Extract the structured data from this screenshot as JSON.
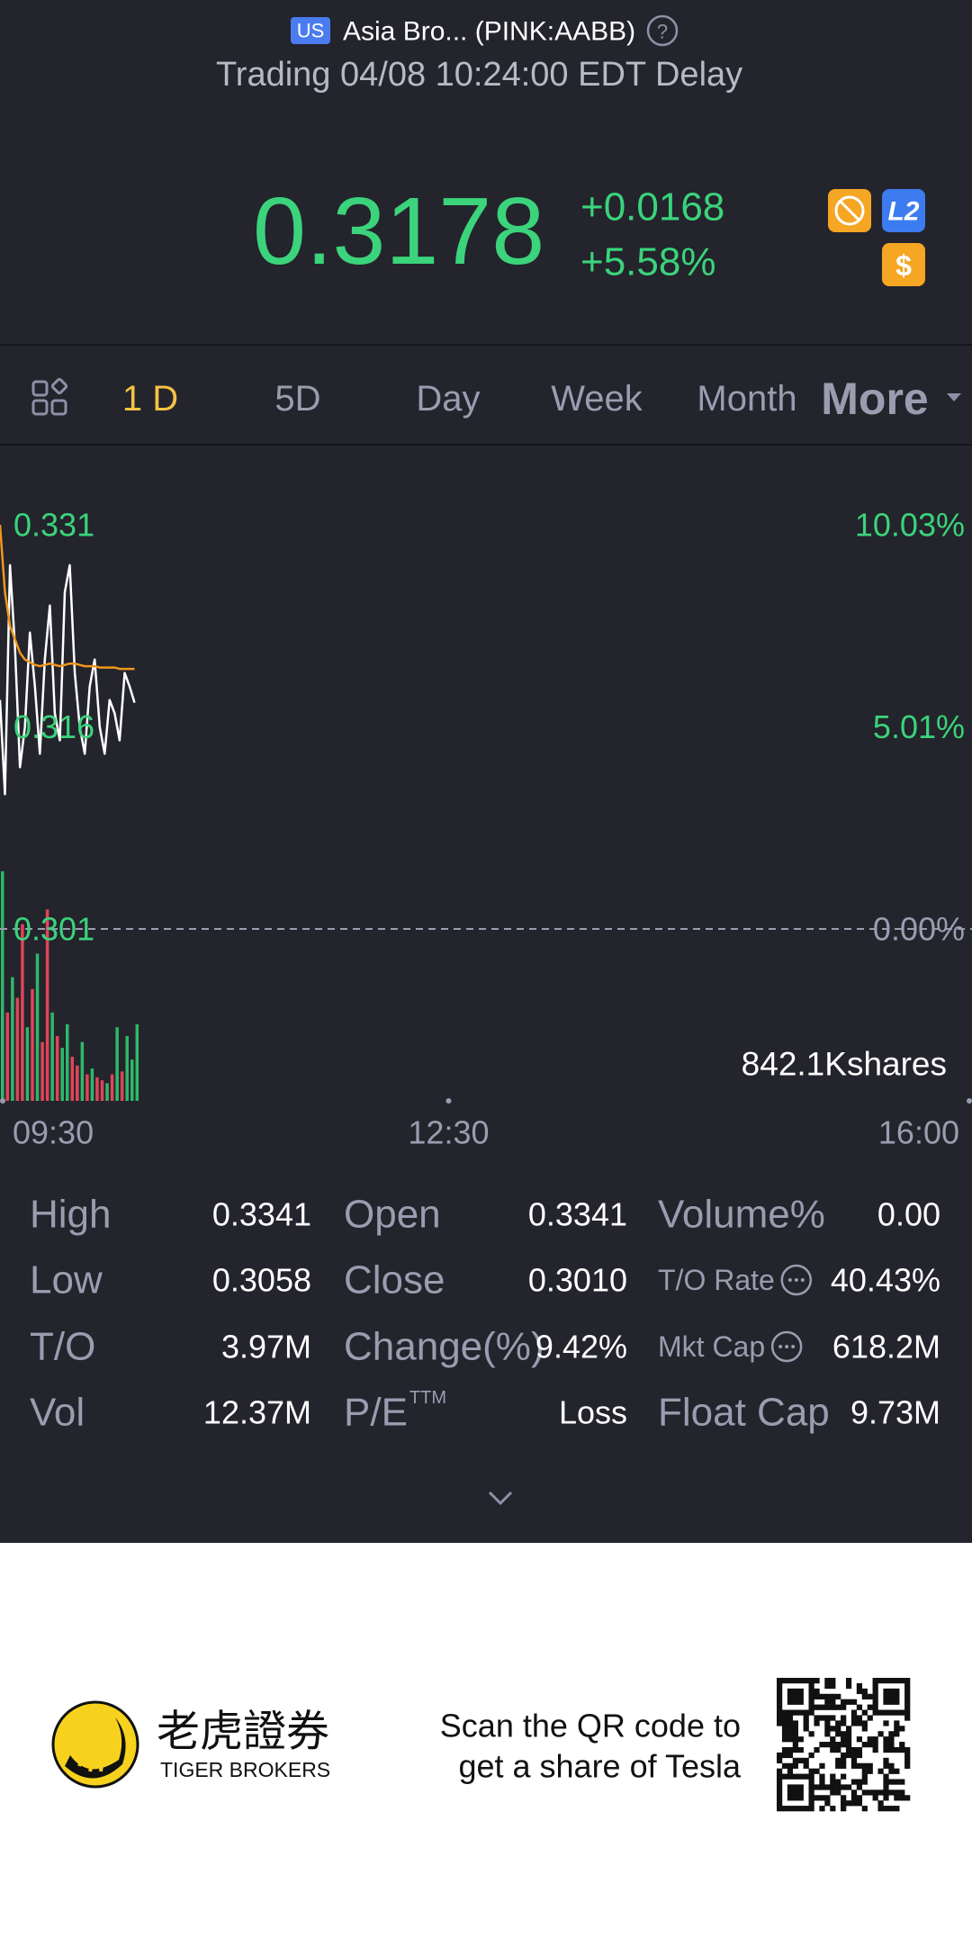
{
  "header": {
    "market_badge": "US",
    "name": "Asia Bro... (PINK:AABB)",
    "help": "?",
    "status": "Trading 04/08 10:24:00 EDT Delay"
  },
  "quote": {
    "price": "0.3178",
    "change": "+0.0168",
    "change_pct": "+5.58%",
    "badges": [
      "L2",
      "$"
    ]
  },
  "tabs": [
    "1 D",
    "5D",
    "Day",
    "Week",
    "Month",
    "More"
  ],
  "selected_tab": 0,
  "chart_data": {
    "type": "line",
    "x": [
      "09:30",
      "09:32",
      "09:34",
      "09:36",
      "09:38",
      "09:40",
      "09:42",
      "09:44",
      "09:46",
      "09:48",
      "09:50",
      "09:52",
      "09:54",
      "09:56",
      "09:58",
      "10:00",
      "10:02",
      "10:04",
      "10:06",
      "10:08",
      "10:10",
      "10:12",
      "10:14",
      "10:16",
      "10:18",
      "10:20",
      "10:22",
      "10:24"
    ],
    "xlim": [
      "09:30",
      "16:00"
    ],
    "xticks": [
      "09:30",
      "12:30",
      "16:00"
    ],
    "series": [
      {
        "color": "#ffffff",
        "values": [
          0.318,
          0.311,
          0.328,
          0.322,
          0.313,
          0.316,
          0.323,
          0.319,
          0.314,
          0.321,
          0.325,
          0.317,
          0.315,
          0.326,
          0.328,
          0.32,
          0.316,
          0.314,
          0.319,
          0.321,
          0.316,
          0.314,
          0.318,
          0.317,
          0.315,
          0.32,
          0.319,
          0.3178
        ]
      },
      {
        "color": "#f0961e",
        "values": [
          0.331,
          0.326,
          0.3235,
          0.3225,
          0.3215,
          0.321,
          0.3208,
          0.3206,
          0.3205,
          0.3206,
          0.3207,
          0.3206,
          0.3205,
          0.3206,
          0.3207,
          0.3207,
          0.3206,
          0.3205,
          0.3205,
          0.3205,
          0.3204,
          0.3204,
          0.3204,
          0.3204,
          0.3203,
          0.3203,
          0.3203,
          0.3203
        ]
      }
    ],
    "ylim": [
      0.301,
      0.331
    ],
    "yticks": [
      0.301,
      0.316,
      0.331
    ],
    "y2lim": [
      0,
      10.03
    ],
    "y2ticks": [
      {
        "value": 0,
        "label": "0.00%"
      },
      {
        "value": 5.01,
        "label": "5.01%"
      },
      {
        "value": 10.03,
        "label": "10.03%"
      }
    ],
    "y_color": "#3bd37b",
    "volume": [
      780000,
      300000,
      420000,
      350000,
      600000,
      250000,
      380000,
      500000,
      200000,
      650000,
      300000,
      220000,
      180000,
      260000,
      150000,
      120000,
      200000,
      90000,
      110000,
      80000,
      70000,
      60000,
      90000,
      250000,
      100000,
      220000,
      140000,
      260000
    ],
    "volume_colors": [
      "#2fb86a",
      "#e0445a",
      "#2fb86a",
      "#e0445a",
      "#e0445a",
      "#2fb86a",
      "#e0445a",
      "#2fb86a",
      "#e0445a",
      "#e0445a",
      "#2fb86a",
      "#e0445a",
      "#2fb86a",
      "#2fb86a",
      "#e0445a",
      "#e0445a",
      "#2fb86a",
      "#e0445a",
      "#2fb86a",
      "#e0445a",
      "#e0445a",
      "#2fb86a",
      "#e0445a",
      "#2fb86a",
      "#e0445a",
      "#2fb86a",
      "#2fb86a",
      "#2fb86a"
    ],
    "vlim": [
      0,
      850000
    ],
    "volume_label": "842.1Kshares"
  },
  "stats": [
    [
      {
        "label": "High",
        "value": "0.3341"
      },
      {
        "label": "Open",
        "value": "0.3341"
      },
      {
        "label": "Volume%",
        "value": "0.00"
      }
    ],
    [
      {
        "label": "Low",
        "value": "0.3058"
      },
      {
        "label": "Close",
        "value": "0.3010"
      },
      {
        "label": "T/O Rate",
        "value": "40.43%",
        "info": true
      }
    ],
    [
      {
        "label": "T/O",
        "value": "3.97M"
      },
      {
        "label": "Change(%)",
        "value": "9.42%"
      },
      {
        "label": "Mkt Cap",
        "value": "618.2M",
        "info": true
      }
    ],
    [
      {
        "label": "Vol",
        "value": "12.37M"
      },
      {
        "label": "P/E",
        "sup": "TTM",
        "value": "Loss"
      },
      {
        "label": "Float Cap",
        "value": "9.73M"
      }
    ]
  ],
  "footer": {
    "brand_cn": "老虎證券",
    "brand_en": "TIGER BROKERS",
    "promo": [
      "Scan the QR code to",
      "get a share of Tesla"
    ]
  }
}
